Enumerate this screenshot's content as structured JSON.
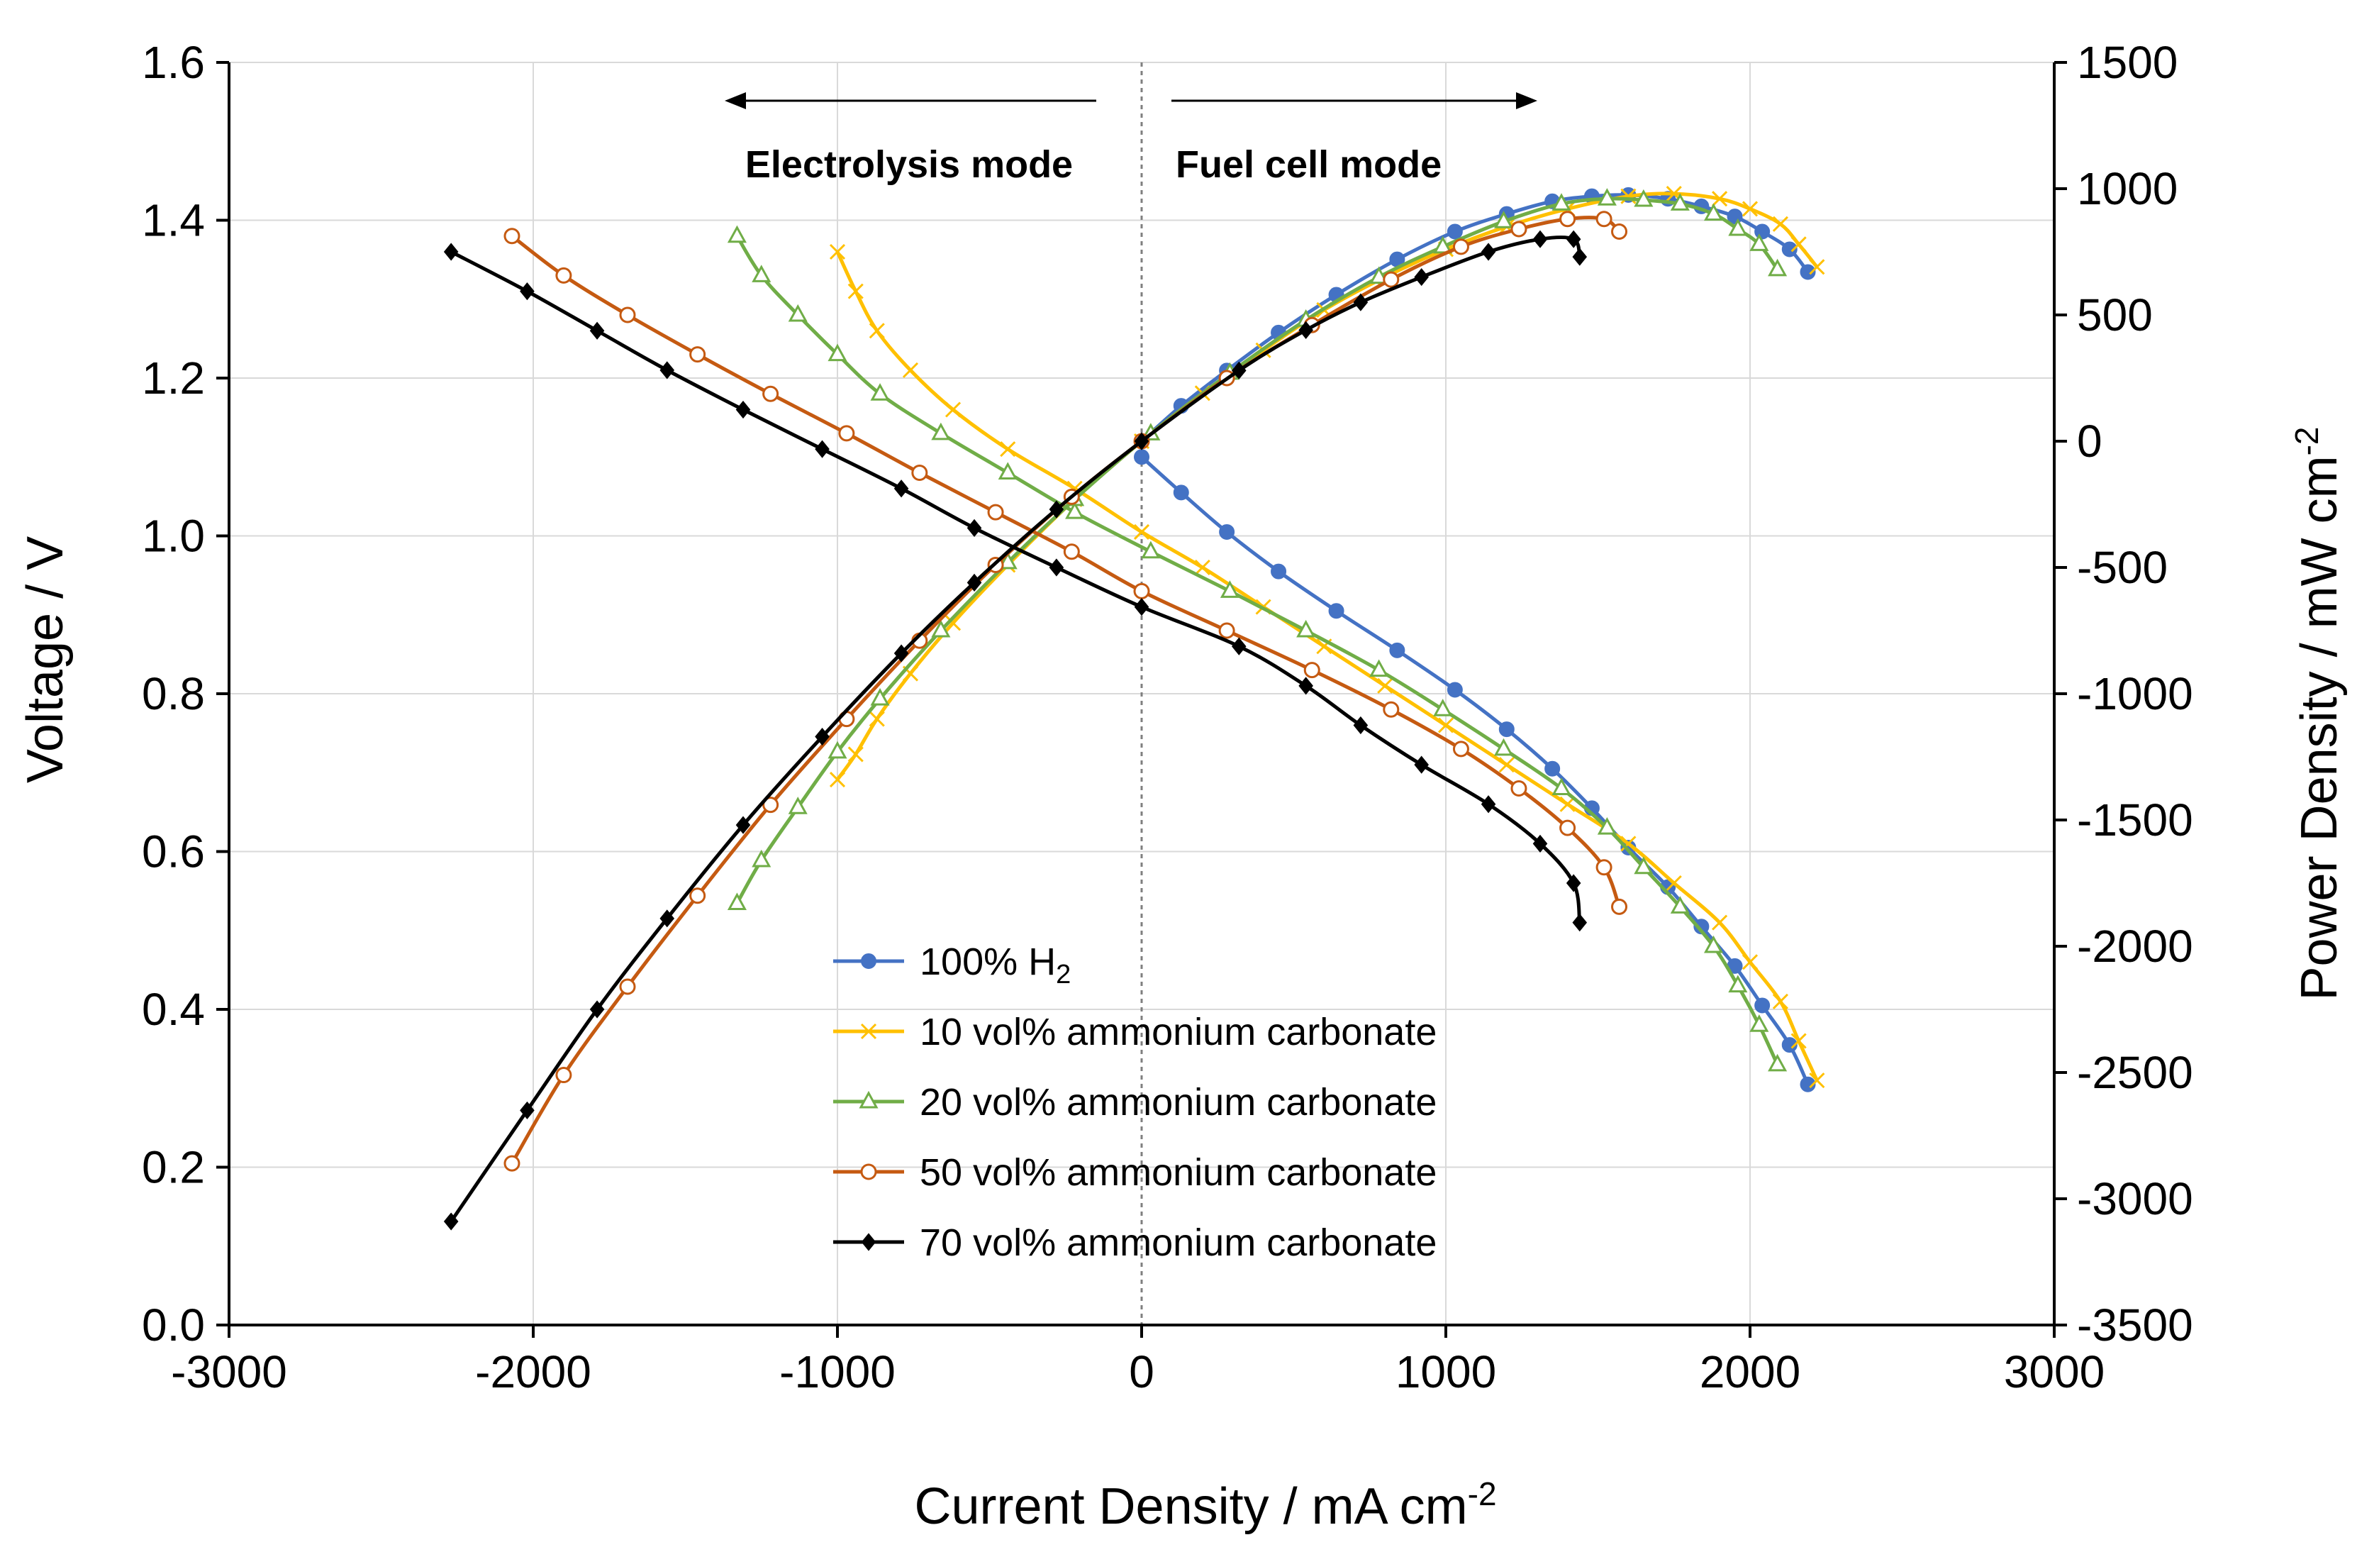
{
  "chart_data": {
    "type": "line",
    "xlabel": "Current Density / mA cm",
    "xlabel_sup": "-2",
    "ylabel": "Voltage / V",
    "y2label": "Power Density / mW cm",
    "y2label_sup": "-2",
    "xlim": [
      -3000,
      3000
    ],
    "ylim": [
      0.0,
      1.6
    ],
    "y2lim": [
      -3500,
      1500
    ],
    "xticks": [
      "-3000",
      "-2000",
      "-1000",
      "0",
      "1000",
      "2000",
      "3000"
    ],
    "yticks": [
      "0.0",
      "0.2",
      "0.4",
      "0.6",
      "0.8",
      "1.0",
      "1.2",
      "1.4",
      "1.6"
    ],
    "y2ticks": [
      "-3500",
      "-3000",
      "-2500",
      "-2000",
      "-1500",
      "-1000",
      "-500",
      "0",
      "500",
      "1000",
      "1500"
    ],
    "grid": true,
    "annotations": {
      "electrolysis": "Electrolysis mode",
      "fuel_cell": "Fuel cell mode"
    },
    "legend_position": "center-bottom",
    "series": [
      {
        "name": "100% H",
        "name_sub": "2",
        "color": "#4472C4",
        "marker": "circle-filled",
        "voltage": [
          [
            0,
            1.1
          ],
          [
            130,
            1.055
          ],
          [
            280,
            1.005
          ],
          [
            450,
            0.955
          ],
          [
            640,
            0.905
          ],
          [
            840,
            0.855
          ],
          [
            1030,
            0.805
          ],
          [
            1200,
            0.755
          ],
          [
            1350,
            0.705
          ],
          [
            1480,
            0.655
          ],
          [
            1600,
            0.605
          ],
          [
            1730,
            0.555
          ],
          [
            1840,
            0.505
          ],
          [
            1950,
            0.455
          ],
          [
            2040,
            0.405
          ],
          [
            2130,
            0.355
          ],
          [
            2190,
            0.305
          ]
        ],
        "power": [
          [
            0,
            0
          ],
          [
            130,
            140
          ],
          [
            280,
            280
          ],
          [
            450,
            430
          ],
          [
            640,
            580
          ],
          [
            840,
            720
          ],
          [
            1030,
            830
          ],
          [
            1200,
            900
          ],
          [
            1350,
            950
          ],
          [
            1480,
            970
          ],
          [
            1600,
            975
          ],
          [
            1730,
            960
          ],
          [
            1840,
            930
          ],
          [
            1950,
            890
          ],
          [
            2040,
            830
          ],
          [
            2130,
            760
          ],
          [
            2190,
            670
          ]
        ]
      },
      {
        "name": "10 vol% ammonium carbonate",
        "color": "#FFC000",
        "marker": "x",
        "voltage": [
          [
            -1000,
            1.36
          ],
          [
            -940,
            1.31
          ],
          [
            -870,
            1.26
          ],
          [
            -760,
            1.21
          ],
          [
            -620,
            1.16
          ],
          [
            -440,
            1.11
          ],
          [
            -220,
            1.06
          ],
          [
            0,
            1.005
          ],
          [
            200,
            0.96
          ],
          [
            400,
            0.91
          ],
          [
            600,
            0.86
          ],
          [
            800,
            0.81
          ],
          [
            1000,
            0.76
          ],
          [
            1200,
            0.71
          ],
          [
            1400,
            0.66
          ],
          [
            1600,
            0.61
          ],
          [
            1750,
            0.56
          ],
          [
            1900,
            0.51
          ],
          [
            2000,
            0.46
          ],
          [
            2100,
            0.41
          ],
          [
            2160,
            0.36
          ],
          [
            2220,
            0.31
          ]
        ],
        "power": [
          [
            -1000,
            -1340
          ],
          [
            -940,
            -1240
          ],
          [
            -870,
            -1100
          ],
          [
            -760,
            -920
          ],
          [
            -620,
            -720
          ],
          [
            -440,
            -490
          ],
          [
            -220,
            -230
          ],
          [
            0,
            0
          ],
          [
            200,
            190
          ],
          [
            400,
            360
          ],
          [
            600,
            520
          ],
          [
            800,
            650
          ],
          [
            1000,
            760
          ],
          [
            1200,
            850
          ],
          [
            1400,
            920
          ],
          [
            1600,
            970
          ],
          [
            1750,
            980
          ],
          [
            1900,
            960
          ],
          [
            2000,
            920
          ],
          [
            2100,
            860
          ],
          [
            2160,
            780
          ],
          [
            2220,
            690
          ]
        ]
      },
      {
        "name": "20 vol% ammonium carbonate",
        "color": "#70AD47",
        "marker": "triangle-open",
        "voltage": [
          [
            -1330,
            1.38
          ],
          [
            -1250,
            1.33
          ],
          [
            -1130,
            1.28
          ],
          [
            -1000,
            1.23
          ],
          [
            -860,
            1.18
          ],
          [
            -660,
            1.13
          ],
          [
            -440,
            1.08
          ],
          [
            -220,
            1.03
          ],
          [
            30,
            0.98
          ],
          [
            290,
            0.93
          ],
          [
            540,
            0.88
          ],
          [
            780,
            0.83
          ],
          [
            990,
            0.78
          ],
          [
            1190,
            0.73
          ],
          [
            1380,
            0.68
          ],
          [
            1530,
            0.63
          ],
          [
            1650,
            0.58
          ],
          [
            1770,
            0.53
          ],
          [
            1880,
            0.48
          ],
          [
            1960,
            0.43
          ],
          [
            2030,
            0.38
          ],
          [
            2090,
            0.33
          ]
        ],
        "power": [
          [
            -1330,
            -1830
          ],
          [
            -1250,
            -1660
          ],
          [
            -1130,
            -1450
          ],
          [
            -1000,
            -1230
          ],
          [
            -860,
            -1020
          ],
          [
            -660,
            -750
          ],
          [
            -440,
            -480
          ],
          [
            -220,
            -230
          ],
          [
            30,
            30
          ],
          [
            290,
            270
          ],
          [
            540,
            480
          ],
          [
            780,
            650
          ],
          [
            990,
            770
          ],
          [
            1190,
            870
          ],
          [
            1380,
            940
          ],
          [
            1530,
            960
          ],
          [
            1650,
            955
          ],
          [
            1770,
            940
          ],
          [
            1880,
            900
          ],
          [
            1960,
            840
          ],
          [
            2030,
            780
          ],
          [
            2090,
            680
          ]
        ]
      },
      {
        "name": "50 vol% ammonium carbonate",
        "color": "#C55A11",
        "marker": "circle-open",
        "voltage": [
          [
            -2070,
            1.38
          ],
          [
            -1900,
            1.33
          ],
          [
            -1690,
            1.28
          ],
          [
            -1460,
            1.23
          ],
          [
            -1220,
            1.18
          ],
          [
            -970,
            1.13
          ],
          [
            -730,
            1.08
          ],
          [
            -480,
            1.03
          ],
          [
            -230,
            0.98
          ],
          [
            0,
            0.93
          ],
          [
            280,
            0.88
          ],
          [
            560,
            0.83
          ],
          [
            820,
            0.78
          ],
          [
            1050,
            0.73
          ],
          [
            1240,
            0.68
          ],
          [
            1400,
            0.63
          ],
          [
            1520,
            0.58
          ],
          [
            1570,
            0.53
          ]
        ],
        "power": [
          [
            -2070,
            -2860
          ],
          [
            -1900,
            -2510
          ],
          [
            -1690,
            -2160
          ],
          [
            -1460,
            -1800
          ],
          [
            -1220,
            -1440
          ],
          [
            -970,
            -1100
          ],
          [
            -730,
            -790
          ],
          [
            -480,
            -490
          ],
          [
            -230,
            -220
          ],
          [
            0,
            0
          ],
          [
            280,
            250
          ],
          [
            560,
            460
          ],
          [
            820,
            640
          ],
          [
            1050,
            770
          ],
          [
            1240,
            840
          ],
          [
            1400,
            880
          ],
          [
            1520,
            880
          ],
          [
            1570,
            830
          ]
        ]
      },
      {
        "name": "70 vol% ammonium carbonate",
        "color": "#000000",
        "marker": "diamond-filled",
        "voltage": [
          [
            -2270,
            1.36
          ],
          [
            -2020,
            1.31
          ],
          [
            -1790,
            1.26
          ],
          [
            -1560,
            1.21
          ],
          [
            -1310,
            1.16
          ],
          [
            -1050,
            1.11
          ],
          [
            -790,
            1.06
          ],
          [
            -550,
            1.01
          ],
          [
            -280,
            0.96
          ],
          [
            0,
            0.91
          ],
          [
            320,
            0.86
          ],
          [
            540,
            0.81
          ],
          [
            720,
            0.76
          ],
          [
            920,
            0.71
          ],
          [
            1140,
            0.66
          ],
          [
            1310,
            0.61
          ],
          [
            1420,
            0.56
          ],
          [
            1440,
            0.51
          ]
        ],
        "power": [
          [
            -2270,
            -3090
          ],
          [
            -2020,
            -2650
          ],
          [
            -1790,
            -2250
          ],
          [
            -1560,
            -1890
          ],
          [
            -1310,
            -1520
          ],
          [
            -1050,
            -1170
          ],
          [
            -790,
            -840
          ],
          [
            -550,
            -560
          ],
          [
            -280,
            -270
          ],
          [
            0,
            0
          ],
          [
            320,
            280
          ],
          [
            540,
            440
          ],
          [
            720,
            550
          ],
          [
            920,
            650
          ],
          [
            1140,
            750
          ],
          [
            1310,
            800
          ],
          [
            1420,
            800
          ],
          [
            1440,
            730
          ]
        ]
      }
    ]
  }
}
